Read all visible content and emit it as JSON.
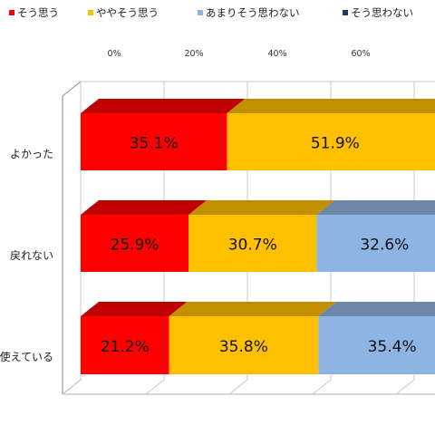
{
  "chart_data": {
    "type": "bar",
    "orientation": "horizontal",
    "stacked": true,
    "style_3d": true,
    "legend_position": "top",
    "xlim": [
      0,
      100
    ],
    "tick_labels": [
      "0%",
      "20%",
      "40%",
      "60%"
    ],
    "categories": [
      "…よかった",
      "…戻れない",
      "…使えている"
    ],
    "category_labels_visible": [
      "よかった",
      "戻れない",
      "使えている"
    ],
    "series": [
      {
        "name": "そう思う",
        "color": "#ff0000",
        "top_color": "#c00000",
        "values": [
          35.1,
          25.9,
          21.2
        ]
      },
      {
        "name": "ややそう思う",
        "color": "#ffc000",
        "top_color": "#c09000",
        "values": [
          51.9,
          30.7,
          35.8
        ]
      },
      {
        "name": "あまりそう思わない",
        "color": "#8eb4e3",
        "top_color": "#6c87a8",
        "values": [
          null,
          32.6,
          35.4
        ]
      },
      {
        "name": "そう思わない",
        "color": "#1f3864",
        "top_color": "#162849",
        "values": [
          null,
          null,
          null
        ]
      }
    ],
    "data_labels": [
      [
        "35.1%",
        "51.9%",
        null,
        null
      ],
      [
        "25.9%",
        "30.7%",
        "32.6%",
        null
      ],
      [
        "21.2%",
        "35.8%",
        "35.4%",
        null
      ]
    ]
  }
}
